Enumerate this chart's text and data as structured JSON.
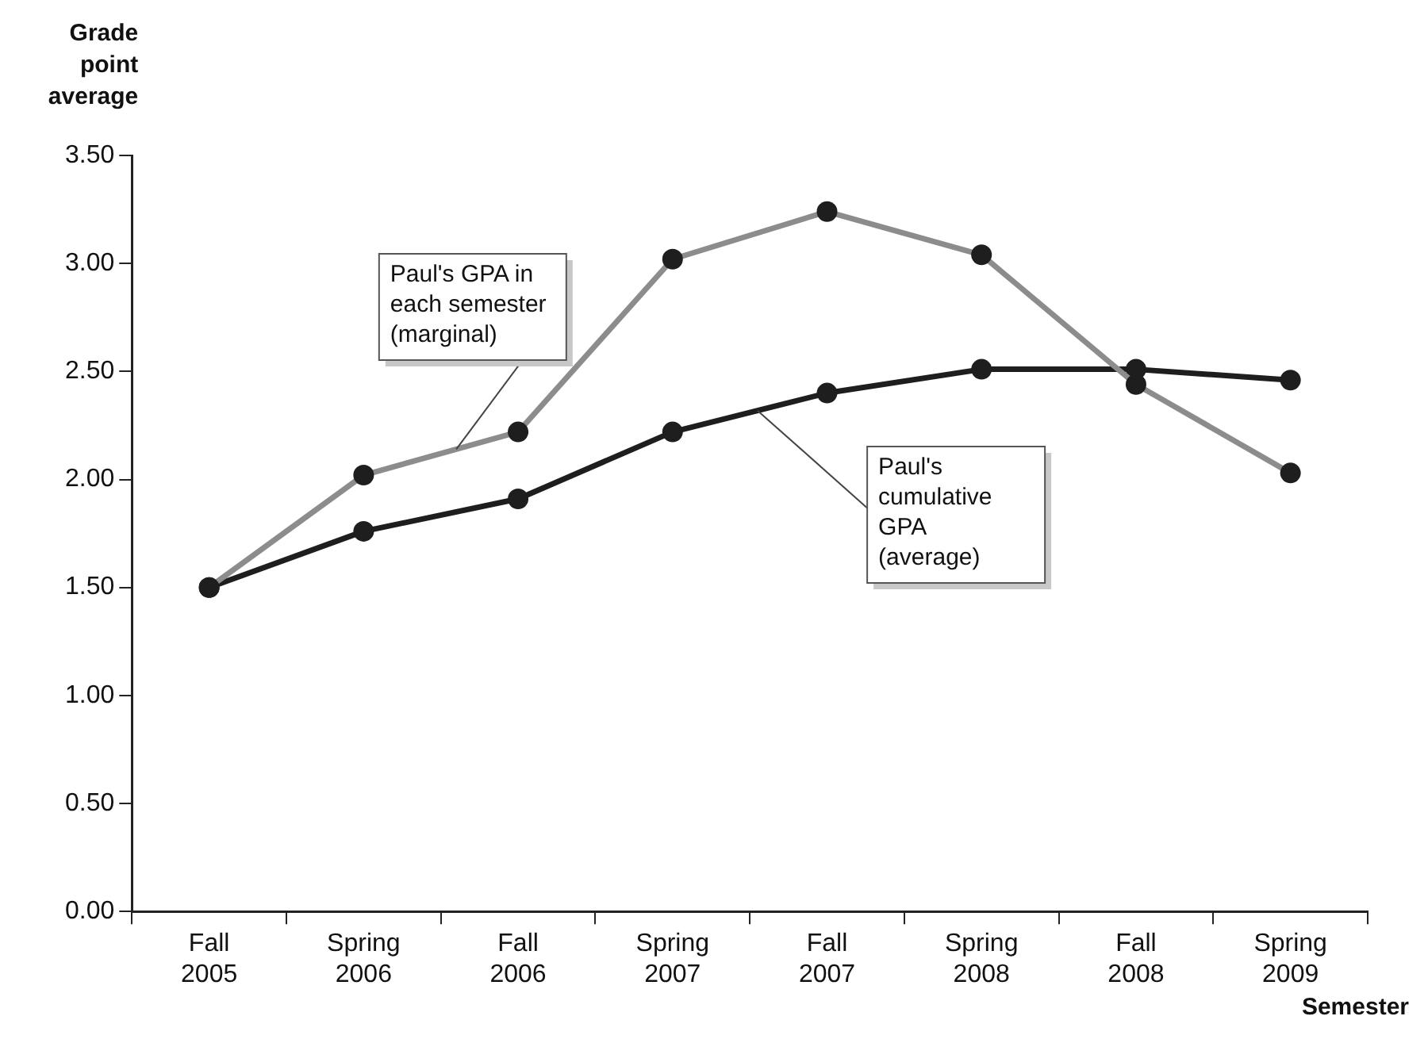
{
  "chart_data": {
    "type": "line",
    "xlabel": "Semester",
    "ylabel": "Grade point average",
    "categories": [
      "Fall 2005",
      "Spring 2006",
      "Fall 2006",
      "Spring 2007",
      "Fall 2007",
      "Spring 2008",
      "Fall 2008",
      "Spring 2009"
    ],
    "series": [
      {
        "name": "Paul's GPA in each semester (marginal)",
        "color": "#8c8c8c",
        "values": [
          1.5,
          2.02,
          2.22,
          3.02,
          3.24,
          3.04,
          2.44,
          2.03
        ]
      },
      {
        "name": "Paul's cumulative GPA (average)",
        "color": "#1e1e1e",
        "values": [
          1.5,
          1.76,
          1.91,
          2.22,
          2.4,
          2.51,
          2.51,
          2.46
        ]
      }
    ],
    "ylim": [
      0,
      3.5
    ],
    "yticks": [
      {
        "value": 0,
        "label": "0.00"
      },
      {
        "value": 0.5,
        "label": "0.50"
      },
      {
        "value": 1,
        "label": "1.00"
      },
      {
        "value": 1.5,
        "label": "1.50"
      },
      {
        "value": 2,
        "label": "2.00"
      },
      {
        "value": 2.5,
        "label": "2.50"
      },
      {
        "value": 3,
        "label": "3.00"
      },
      {
        "value": 3.5,
        "label": "3.50"
      }
    ],
    "grid": false,
    "legend": false,
    "marker": "circle",
    "line_style": "solid"
  }
}
